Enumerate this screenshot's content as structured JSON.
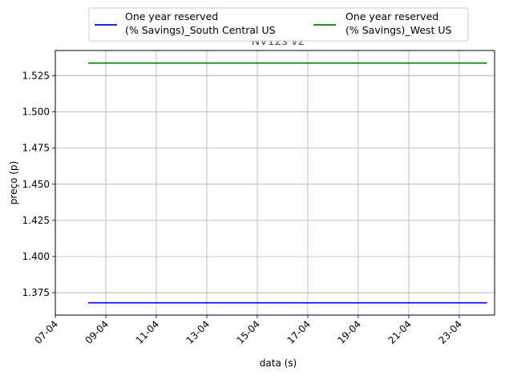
{
  "chart_data": {
    "type": "line",
    "title": "NV12s v2",
    "xlabel": "data (s)",
    "ylabel": "preço (p)",
    "x_tick_labels": [
      "07-04",
      "09-04",
      "11-04",
      "13-04",
      "15-04",
      "17-04",
      "19-04",
      "21-04",
      "23-04"
    ],
    "y_tick_labels": [
      "1.375",
      "1.400",
      "1.425",
      "1.450",
      "1.475",
      "1.500",
      "1.525"
    ],
    "x_ticks_day": [
      7,
      9,
      11,
      13,
      15,
      17,
      19,
      21,
      23
    ],
    "y_ticks": [
      1.375,
      1.4,
      1.425,
      1.45,
      1.475,
      1.5,
      1.525
    ],
    "xlim_day": [
      7,
      24.4
    ],
    "ylim": [
      1.3595,
      1.5425
    ],
    "grid": true,
    "legend_position": "top-center",
    "series": [
      {
        "name_line1": "One year reserved",
        "name_line2": "(% Savings)_South Central US",
        "color": "#0000ff",
        "x_day": [
          8.3,
          24.1
        ],
        "values": [
          1.368,
          1.368
        ]
      },
      {
        "name_line1": "One year reserved",
        "name_line2": "(% Savings)_West US",
        "color": "#008000",
        "x_day": [
          8.3,
          24.1
        ],
        "values": [
          1.5338,
          1.5338
        ]
      }
    ]
  }
}
